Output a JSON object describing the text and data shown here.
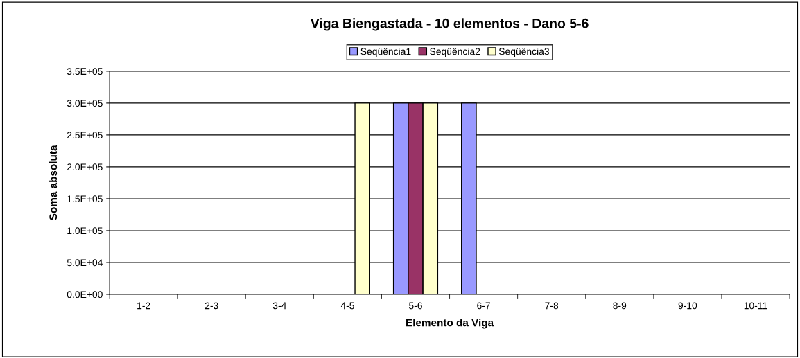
{
  "chart_data": {
    "type": "bar",
    "title": "Viga Biengastada - 10 elementos - Dano 5-6",
    "xlabel": "Elemento da Viga",
    "ylabel": "Soma absoluta",
    "categories": [
      "1-2",
      "2-3",
      "3-4",
      "4-5",
      "5-6",
      "6-7",
      "7-8",
      "8-9",
      "9-10",
      "10-11"
    ],
    "series": [
      {
        "name": "Seqüência1",
        "color": "#9999ff",
        "values": [
          null,
          null,
          null,
          null,
          300000,
          300000,
          null,
          null,
          null,
          null
        ]
      },
      {
        "name": "Seqüência2",
        "color": "#993366",
        "values": [
          null,
          null,
          null,
          null,
          300000,
          null,
          null,
          null,
          null,
          null
        ]
      },
      {
        "name": "Seqüência3",
        "color": "#ffffcc",
        "values": [
          null,
          null,
          null,
          300000,
          300000,
          null,
          null,
          null,
          null,
          null
        ]
      }
    ],
    "ylim": [
      0,
      350000
    ],
    "yticks": [
      {
        "value": 0,
        "label": "0.0E+00"
      },
      {
        "value": 50000,
        "label": "5.0E+04"
      },
      {
        "value": 100000,
        "label": "1.0E+05"
      },
      {
        "value": 150000,
        "label": "1.5E+05"
      },
      {
        "value": 200000,
        "label": "2.0E+05"
      },
      {
        "value": 250000,
        "label": "2.5E+05"
      },
      {
        "value": 300000,
        "label": "3.0E+05"
      },
      {
        "value": 350000,
        "label": "3.5E+05"
      }
    ],
    "grid": "y",
    "legend": "top"
  }
}
